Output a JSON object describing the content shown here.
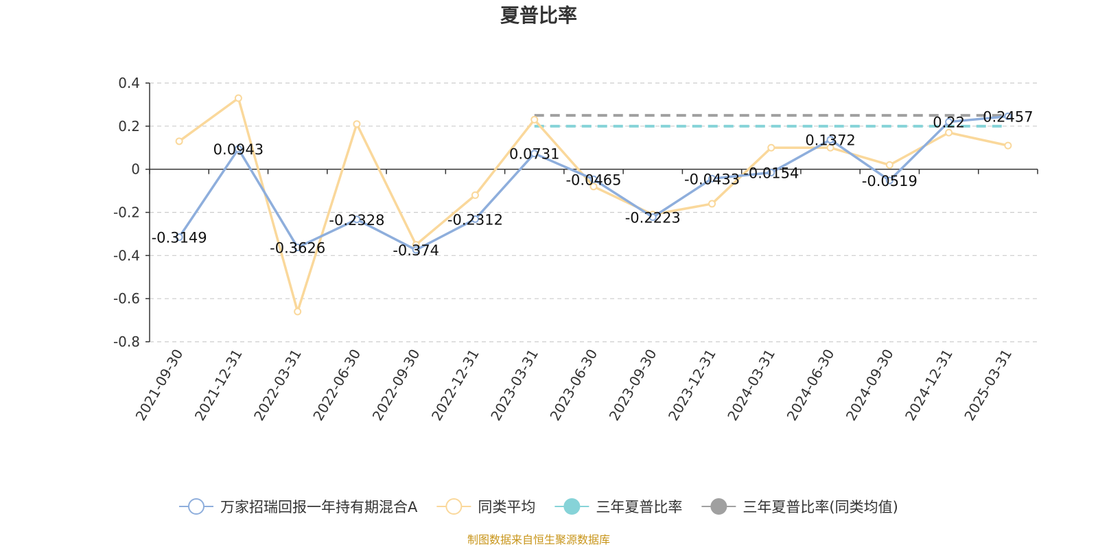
{
  "chart_data": {
    "type": "line",
    "title": "夏普比率",
    "categories": [
      "2021-09-30",
      "2021-12-31",
      "2022-03-31",
      "2022-06-30",
      "2022-09-30",
      "2022-12-31",
      "2023-03-31",
      "2023-06-30",
      "2023-09-30",
      "2023-12-31",
      "2024-03-31",
      "2024-06-30",
      "2024-09-30",
      "2024-12-31",
      "2025-03-31"
    ],
    "ylim": [
      -0.8,
      0.4
    ],
    "yticks": [
      0.4,
      0.2,
      0,
      -0.2,
      -0.4,
      -0.6,
      -0.8
    ],
    "ytick_labels": [
      "0.4",
      "0.2",
      "0",
      "-0.2",
      "-0.4",
      "-0.6",
      "-0.8"
    ],
    "grid": true,
    "legend_position": "bottom",
    "series": [
      {
        "name": "万家招瑞回报一年持有期混合A",
        "color": "#8eaedc",
        "values": [
          -0.3149,
          0.0943,
          -0.3626,
          -0.2328,
          -0.374,
          -0.2312,
          0.0731,
          -0.0465,
          -0.2223,
          -0.0433,
          -0.0154,
          0.1372,
          -0.0519,
          0.22,
          0.2457
        ],
        "labels": [
          "-0.3149",
          "0.0943",
          "-0.3626",
          "-0.2328",
          "-0.374",
          "-0.2312",
          "0.0731",
          "-0.0465",
          "-0.2223",
          "-0.0433",
          "-0.0154",
          "0.1372",
          "-0.0519",
          "0.22",
          "0.2457"
        ]
      },
      {
        "name": "同类平均",
        "color": "#fad89b",
        "values": [
          0.13,
          0.33,
          -0.66,
          0.21,
          -0.35,
          -0.12,
          0.23,
          -0.08,
          -0.21,
          -0.16,
          0.1,
          0.1,
          0.02,
          0.17,
          0.11
        ]
      },
      {
        "name": "三年夏普比率",
        "color": "#86d3d8",
        "type": "reference",
        "value": 0.2,
        "from": "2023-03-31",
        "to": "2025-03-31"
      },
      {
        "name": "三年夏普比率(同类均值)",
        "color": "#a0a0a0",
        "type": "reference",
        "value": 0.25,
        "from": "2023-03-31",
        "to": "2025-03-31"
      }
    ]
  },
  "source_note": "制图数据来自恒生聚源数据库"
}
